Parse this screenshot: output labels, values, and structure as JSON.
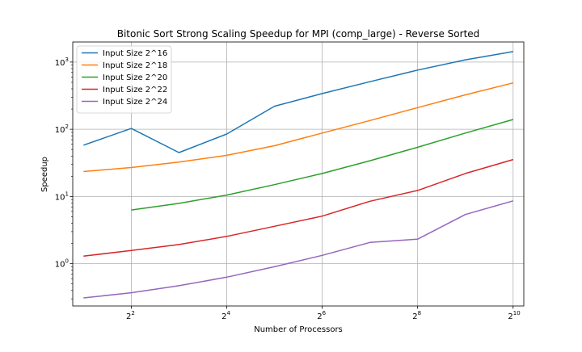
{
  "chart_data": {
    "type": "line",
    "title": "Bitonic Sort Strong Scaling Speedup for MPI (comp_large) - Reverse Sorted",
    "xlabel": "Number of Processors",
    "ylabel": "Speedup",
    "x_scale": "log2",
    "y_scale": "log10",
    "x": [
      2,
      4,
      8,
      16,
      32,
      64,
      128,
      256,
      512,
      1024
    ],
    "xlim": [
      1.71,
      1196
    ],
    "ylim": [
      0.235,
      1990
    ],
    "x_ticks": [
      {
        "value": 4,
        "base": "2",
        "exp": "2"
      },
      {
        "value": 16,
        "base": "2",
        "exp": "4"
      },
      {
        "value": 64,
        "base": "2",
        "exp": "6"
      },
      {
        "value": 256,
        "base": "2",
        "exp": "8"
      },
      {
        "value": 1024,
        "base": "2",
        "exp": "10"
      }
    ],
    "y_ticks": [
      {
        "value": 1,
        "base": "10",
        "exp": "0"
      },
      {
        "value": 10,
        "base": "10",
        "exp": "1"
      },
      {
        "value": 100,
        "base": "10",
        "exp": "2"
      },
      {
        "value": 1000,
        "base": "10",
        "exp": "3"
      }
    ],
    "grid": true,
    "legend_position": "top-left",
    "series": [
      {
        "name": "Input Size 2^16",
        "color": "#1f77b4",
        "values": [
          58,
          103,
          45,
          85,
          220,
          340,
          510,
          760,
          1080,
          1430
        ]
      },
      {
        "name": "Input Size 2^18",
        "color": "#ff7f0e",
        "values": [
          23.5,
          27,
          32.5,
          41,
          57,
          88,
          135,
          210,
          325,
          490
        ]
      },
      {
        "name": "Input Size 2^20",
        "color": "#2ca02c",
        "values": [
          null,
          6.3,
          7.9,
          10.5,
          15,
          22,
          34,
          54,
          88,
          140
        ]
      },
      {
        "name": "Input Size 2^22",
        "color": "#d62728",
        "values": [
          1.3,
          1.57,
          1.93,
          2.55,
          3.6,
          5.1,
          8.5,
          12.3,
          22,
          35.5
        ]
      },
      {
        "name": "Input Size 2^24",
        "color": "#9467bd",
        "values": [
          0.31,
          0.37,
          0.47,
          0.63,
          0.9,
          1.33,
          2.07,
          2.32,
          5.4,
          8.6
        ]
      }
    ]
  }
}
